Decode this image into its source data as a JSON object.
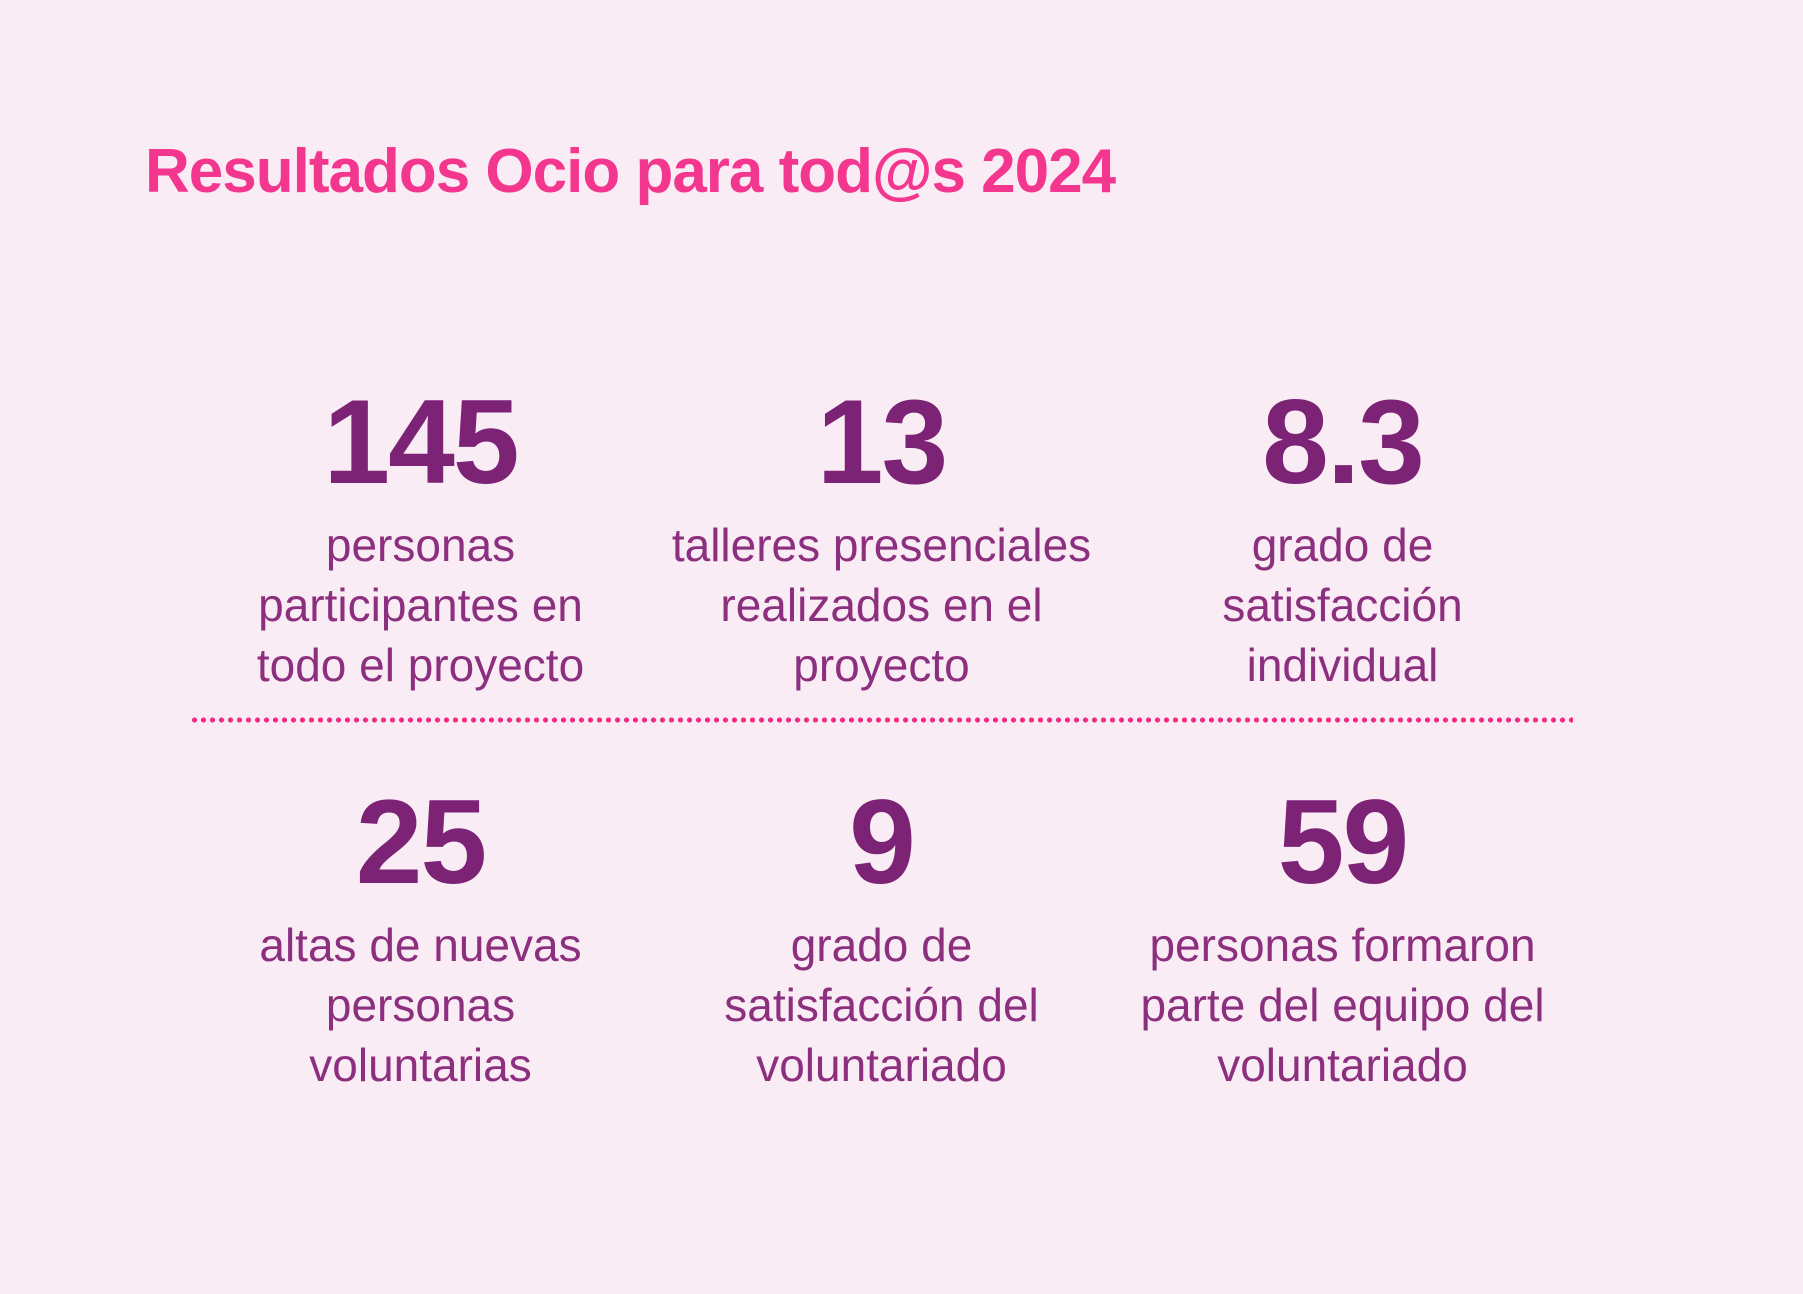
{
  "title": "Resultados Ocio para tod@s 2024",
  "colors": {
    "background": "#faecf4",
    "title": "#f3378e",
    "stat_number": "#7c2376",
    "stat_label": "#8c2f7f",
    "divider_dots": "#ee2c80"
  },
  "stats": [
    {
      "value": "145",
      "label": "personas\nparticipantes en\ntodo el proyecto"
    },
    {
      "value": "13",
      "label": "talleres presenciales\nrealizados en el\nproyecto"
    },
    {
      "value": "8.3",
      "label": "grado de\nsatisfacción\nindividual"
    },
    {
      "value": "25",
      "label": "altas de nuevas\npersonas\nvoluntarias"
    },
    {
      "value": "9",
      "label": "grado de\nsatisfacción del\nvoluntariado"
    },
    {
      "value": "59",
      "label": "personas formaron\nparte del equipo del\nvoluntariado"
    }
  ],
  "chart_data": {
    "type": "table",
    "title": "Resultados Ocio para tod@s 2024",
    "items": [
      {
        "value": 145,
        "label": "personas participantes en todo el proyecto"
      },
      {
        "value": 13,
        "label": "talleres presenciales realizados en el proyecto"
      },
      {
        "value": 8.3,
        "label": "grado de satisfacción individual"
      },
      {
        "value": 25,
        "label": "altas de nuevas personas voluntarias"
      },
      {
        "value": 9,
        "label": "grado de satisfacción del voluntariado"
      },
      {
        "value": 59,
        "label": "personas formaron parte del equipo del voluntariado"
      }
    ],
    "layout": "2 rows x 3 columns of big-number KPIs, dotted divider between rows"
  }
}
